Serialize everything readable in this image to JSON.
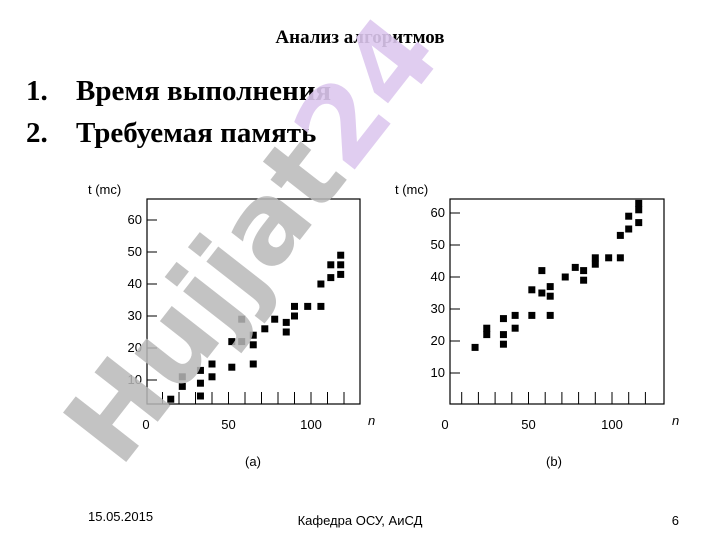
{
  "slide": {
    "title": "Анализ алгоритмов",
    "list": [
      {
        "num": "1.",
        "text": "Время выполнения"
      },
      {
        "num": "2.",
        "text": "Требуемая память"
      }
    ]
  },
  "watermark": {
    "text": "Hujjat24",
    "color": "#b9b9b9",
    "accent_color": "#ddc8ee"
  },
  "chart_data": [
    {
      "type": "scatter",
      "label": "(a)",
      "ylabel": "t (mc)",
      "xlabel": "n",
      "xlim": [
        -5,
        130
      ],
      "ylim": [
        -10,
        68
      ],
      "xticks": [
        0,
        50,
        100
      ],
      "yticks": [
        10,
        20,
        30,
        40,
        50,
        60
      ],
      "points": [
        [
          15,
          4
        ],
        [
          22,
          8
        ],
        [
          22,
          11
        ],
        [
          33,
          5
        ],
        [
          33,
          9
        ],
        [
          33,
          13
        ],
        [
          40,
          11
        ],
        [
          40,
          15
        ],
        [
          52,
          14
        ],
        [
          52,
          22
        ],
        [
          58,
          29
        ],
        [
          58,
          22
        ],
        [
          65,
          15
        ],
        [
          65,
          21
        ],
        [
          65,
          24
        ],
        [
          72,
          26
        ],
        [
          78,
          29
        ],
        [
          85,
          25
        ],
        [
          85,
          28
        ],
        [
          90,
          30
        ],
        [
          90,
          33
        ],
        [
          98,
          33
        ],
        [
          106,
          33
        ],
        [
          106,
          40
        ],
        [
          112,
          42
        ],
        [
          112,
          46
        ],
        [
          118,
          43
        ],
        [
          118,
          46
        ],
        [
          118,
          49
        ]
      ]
    },
    {
      "type": "scatter",
      "label": "(b)",
      "ylabel": "t (mc)",
      "xlabel": "n",
      "xlim": [
        -5,
        130
      ],
      "ylim": [
        -10,
        68
      ],
      "xticks": [
        0,
        50,
        100
      ],
      "yticks": [
        10,
        20,
        30,
        40,
        50,
        60
      ],
      "points": [
        [
          18,
          18
        ],
        [
          25,
          22
        ],
        [
          25,
          24
        ],
        [
          35,
          19
        ],
        [
          35,
          22
        ],
        [
          35,
          27
        ],
        [
          42,
          24
        ],
        [
          42,
          28
        ],
        [
          52,
          28
        ],
        [
          52,
          36
        ],
        [
          58,
          35
        ],
        [
          58,
          42
        ],
        [
          63,
          28
        ],
        [
          63,
          34
        ],
        [
          63,
          37
        ],
        [
          72,
          40
        ],
        [
          78,
          43
        ],
        [
          83,
          39
        ],
        [
          83,
          42
        ],
        [
          90,
          44
        ],
        [
          90,
          46
        ],
        [
          98,
          46
        ],
        [
          105,
          46
        ],
        [
          105,
          53
        ],
        [
          110,
          55
        ],
        [
          110,
          59
        ],
        [
          116,
          57
        ],
        [
          116,
          61
        ],
        [
          116,
          63
        ]
      ]
    }
  ],
  "footer": {
    "date": "15.05.2015",
    "department": "Кафедра ОСУ,  АиСД",
    "page": "6"
  }
}
